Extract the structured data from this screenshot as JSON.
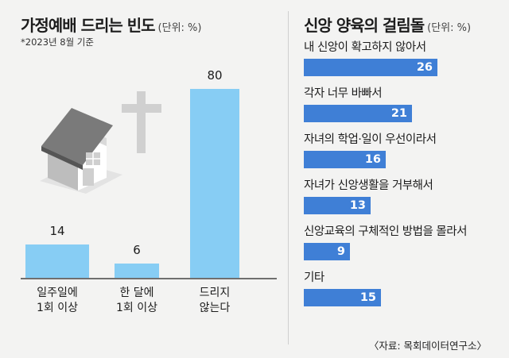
{
  "left": {
    "title": "가정예배 드리는 빈도",
    "unit": "(단위: %)",
    "note": "*2023년 8월 기준"
  },
  "right": {
    "title": "신앙 양육의 걸림돌",
    "unit": "(단위: %)"
  },
  "source": "〈자료: 목회데이터연구소〉",
  "colors": {
    "light_bar": "#87cdf4",
    "dark_bar": "#3f7fd6",
    "background": "#f3f3f2"
  },
  "icons": [
    "house-icon",
    "cross-icon"
  ],
  "chart_data": [
    {
      "type": "bar",
      "orientation": "vertical",
      "title": "가정예배 드리는 빈도",
      "unit": "(단위: %)",
      "categories": [
        "일주일에\n1회 이상",
        "한 달에\n1회 이상",
        "드리지\n않는다"
      ],
      "values": [
        14,
        6,
        80
      ],
      "ylim": [
        0,
        80
      ],
      "grid": false
    },
    {
      "type": "bar",
      "orientation": "horizontal",
      "title": "신앙 양육의 걸림돌",
      "unit": "(단위: %)",
      "categories": [
        "내 신앙이 확고하지 않아서",
        "각자 너무 바빠서",
        "자녀의 학업·일이 우선이라서",
        "자녀가 신앙생활을 거부해서",
        "신앙교육의 구체적인 방법을 몰라서",
        "기타"
      ],
      "values": [
        26,
        21,
        16,
        13,
        9,
        15
      ],
      "xlim": [
        0,
        26
      ],
      "grid": false
    }
  ]
}
